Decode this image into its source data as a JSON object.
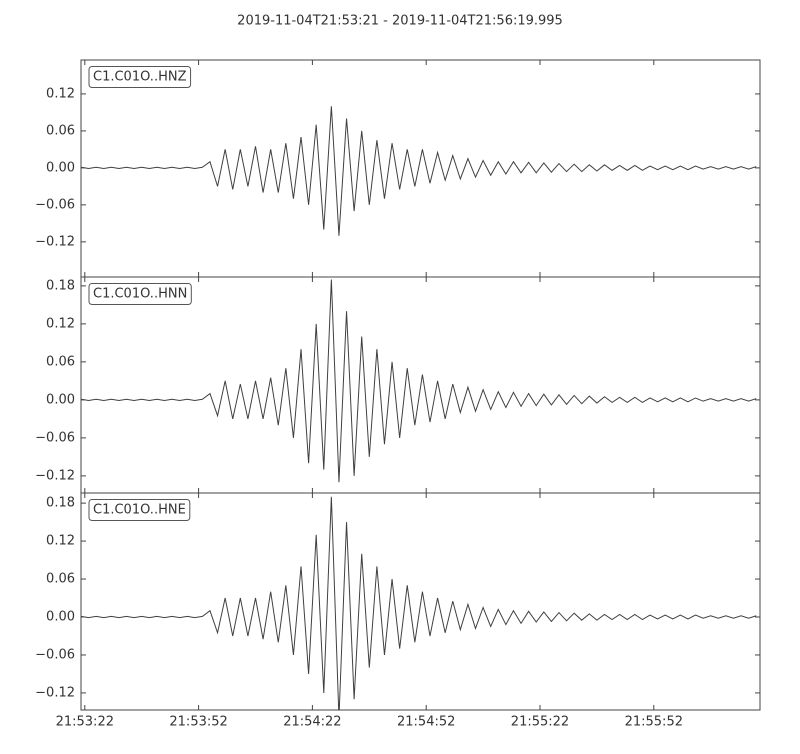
{
  "chart_data": [
    {
      "type": "line",
      "title": "2019-11-04T21:53:21  -  2019-11-04T21:56:19.995",
      "x": [
        0,
        2,
        4,
        6,
        8,
        10,
        12,
        14,
        16,
        18,
        20,
        22,
        24,
        26,
        28,
        30,
        32,
        34,
        36,
        38,
        40,
        42,
        44,
        46,
        48,
        50,
        52,
        54,
        56,
        58,
        60,
        62,
        64,
        66,
        68,
        70,
        72,
        74,
        76,
        78,
        80,
        82,
        84,
        86,
        88,
        90,
        92,
        94,
        96,
        98,
        100,
        102,
        104,
        106,
        108,
        110,
        112,
        114,
        116,
        118,
        120,
        122,
        124,
        126,
        128,
        130,
        132,
        134,
        136,
        138,
        140,
        142,
        144,
        146,
        148,
        150,
        152,
        154,
        156,
        158,
        160,
        162,
        164,
        166,
        168,
        170,
        172,
        174,
        176,
        178
      ],
      "xlim": [
        0,
        178.995
      ],
      "ylim": [
        -0.177,
        0.175
      ],
      "yticks": [
        0.12,
        0.06,
        {
          "value": 0,
          "label": "0.00"
        },
        {
          "value": -0.06,
          "label": "−0.06"
        },
        {
          "value": -0.12,
          "label": "−0.12"
        }
      ],
      "series": [
        {
          "name": "C1.C01O..HNZ",
          "color": "#404040",
          "values": [
            0.001,
            -0.001,
            0.001,
            -0.001,
            0.001,
            -0.001,
            0.001,
            -0.001,
            0.001,
            -0.001,
            0.001,
            -0.001,
            0.001,
            -0.001,
            0.001,
            -0.001,
            0.001,
            0.01,
            -0.03,
            0.03,
            -0.035,
            0.03,
            -0.03,
            0.035,
            -0.04,
            0.03,
            -0.04,
            0.04,
            -0.05,
            0.05,
            -0.06,
            0.07,
            -0.1,
            0.1,
            -0.11,
            0.08,
            -0.07,
            0.06,
            -0.06,
            0.045,
            -0.05,
            0.04,
            -0.035,
            0.03,
            -0.03,
            0.03,
            -0.025,
            0.025,
            -0.02,
            0.02,
            -0.018,
            0.015,
            -0.015,
            0.012,
            -0.012,
            0.01,
            -0.01,
            0.01,
            -0.008,
            0.009,
            -0.008,
            0.008,
            -0.007,
            0.007,
            -0.006,
            0.006,
            -0.006,
            0.005,
            -0.005,
            0.005,
            -0.004,
            0.004,
            -0.004,
            0.004,
            -0.004,
            0.003,
            -0.003,
            0.003,
            -0.003,
            0.003,
            -0.003,
            0.003,
            -0.002,
            0.002,
            -0.002,
            0.002,
            -0.002,
            0.002,
            -0.002,
            0.002
          ]
        }
      ]
    },
    {
      "type": "line",
      "x": [
        0,
        2,
        4,
        6,
        8,
        10,
        12,
        14,
        16,
        18,
        20,
        22,
        24,
        26,
        28,
        30,
        32,
        34,
        36,
        38,
        40,
        42,
        44,
        46,
        48,
        50,
        52,
        54,
        56,
        58,
        60,
        62,
        64,
        66,
        68,
        70,
        72,
        74,
        76,
        78,
        80,
        82,
        84,
        86,
        88,
        90,
        92,
        94,
        96,
        98,
        100,
        102,
        104,
        106,
        108,
        110,
        112,
        114,
        116,
        118,
        120,
        122,
        124,
        126,
        128,
        130,
        132,
        134,
        136,
        138,
        140,
        142,
        144,
        146,
        148,
        150,
        152,
        154,
        156,
        158,
        160,
        162,
        164,
        166,
        168,
        170,
        172,
        174,
        176,
        178
      ],
      "xlim": [
        0,
        178.995
      ],
      "ylim": [
        -0.147,
        0.194
      ],
      "yticks": [
        0.18,
        0.12,
        0.06,
        {
          "value": 0,
          "label": "0.00"
        },
        {
          "value": -0.06,
          "label": "−0.06"
        },
        {
          "value": -0.12,
          "label": "−0.12"
        }
      ],
      "series": [
        {
          "name": "C1.C01O..HNN",
          "color": "#404040",
          "values": [
            0.001,
            -0.001,
            0.001,
            -0.001,
            0.001,
            -0.001,
            0.001,
            -0.001,
            0.001,
            -0.001,
            0.001,
            -0.001,
            0.001,
            -0.001,
            0.001,
            -0.001,
            0.001,
            0.01,
            -0.025,
            0.03,
            -0.03,
            0.025,
            -0.03,
            0.03,
            -0.03,
            0.035,
            -0.04,
            0.05,
            -0.06,
            0.08,
            -0.1,
            0.12,
            -0.11,
            0.19,
            -0.13,
            0.14,
            -0.12,
            0.1,
            -0.09,
            0.08,
            -0.07,
            0.06,
            -0.06,
            0.05,
            -0.04,
            0.04,
            -0.035,
            0.03,
            -0.03,
            0.025,
            -0.02,
            0.02,
            -0.018,
            0.016,
            -0.015,
            0.013,
            -0.012,
            0.012,
            -0.01,
            0.01,
            -0.009,
            0.009,
            -0.008,
            0.008,
            -0.007,
            0.007,
            -0.006,
            0.006,
            -0.005,
            0.005,
            -0.004,
            0.004,
            -0.004,
            0.004,
            -0.004,
            0.003,
            -0.003,
            0.003,
            -0.003,
            0.003,
            -0.003,
            0.003,
            -0.002,
            0.002,
            -0.002,
            0.002,
            -0.002,
            0.002,
            -0.002,
            0.002
          ]
        }
      ]
    },
    {
      "type": "line",
      "x": [
        0,
        2,
        4,
        6,
        8,
        10,
        12,
        14,
        16,
        18,
        20,
        22,
        24,
        26,
        28,
        30,
        32,
        34,
        36,
        38,
        40,
        42,
        44,
        46,
        48,
        50,
        52,
        54,
        56,
        58,
        60,
        62,
        64,
        66,
        68,
        70,
        72,
        74,
        76,
        78,
        80,
        82,
        84,
        86,
        88,
        90,
        92,
        94,
        96,
        98,
        100,
        102,
        104,
        106,
        108,
        110,
        112,
        114,
        116,
        118,
        120,
        122,
        124,
        126,
        128,
        130,
        132,
        134,
        136,
        138,
        140,
        142,
        144,
        146,
        148,
        150,
        152,
        154,
        156,
        158,
        160,
        162,
        164,
        166,
        168,
        170,
        172,
        174,
        176,
        178
      ],
      "xlim": [
        0,
        178.995
      ],
      "xticks": [
        {
          "value": 1,
          "label": "21:53:22"
        },
        {
          "value": 31,
          "label": "21:53:52"
        },
        {
          "value": 61,
          "label": "21:54:22"
        },
        {
          "value": 91,
          "label": "21:54:52"
        },
        {
          "value": 121,
          "label": "21:55:22"
        },
        {
          "value": 151,
          "label": "21:55:52"
        }
      ],
      "ylim": [
        -0.147,
        0.196
      ],
      "yticks": [
        0.18,
        0.12,
        0.06,
        {
          "value": 0,
          "label": "0.00"
        },
        {
          "value": -0.06,
          "label": "−0.06"
        },
        {
          "value": -0.12,
          "label": "−0.12"
        }
      ],
      "series": [
        {
          "name": "C1.C01O..HNE",
          "color": "#404040",
          "values": [
            0.001,
            -0.001,
            0.001,
            -0.001,
            0.001,
            -0.001,
            0.001,
            -0.001,
            0.001,
            -0.001,
            0.001,
            -0.001,
            0.001,
            -0.001,
            0.001,
            -0.001,
            0.001,
            0.01,
            -0.025,
            0.03,
            -0.03,
            0.03,
            -0.03,
            0.03,
            -0.035,
            0.04,
            -0.04,
            0.05,
            -0.06,
            0.08,
            -0.09,
            0.13,
            -0.12,
            0.19,
            -0.16,
            0.15,
            -0.13,
            0.1,
            -0.08,
            0.08,
            -0.06,
            0.06,
            -0.05,
            0.05,
            -0.04,
            0.04,
            -0.03,
            0.03,
            -0.025,
            0.025,
            -0.02,
            0.02,
            -0.018,
            0.015,
            -0.015,
            0.012,
            -0.012,
            0.01,
            -0.01,
            0.009,
            -0.008,
            0.008,
            -0.007,
            0.007,
            -0.006,
            0.006,
            -0.005,
            0.005,
            -0.005,
            0.004,
            -0.004,
            0.004,
            -0.004,
            0.004,
            -0.004,
            0.003,
            -0.003,
            0.003,
            -0.003,
            0.003,
            -0.003,
            0.003,
            -0.002,
            0.002,
            -0.002,
            0.002,
            -0.002,
            0.002,
            -0.002,
            0.002
          ]
        }
      ]
    }
  ]
}
